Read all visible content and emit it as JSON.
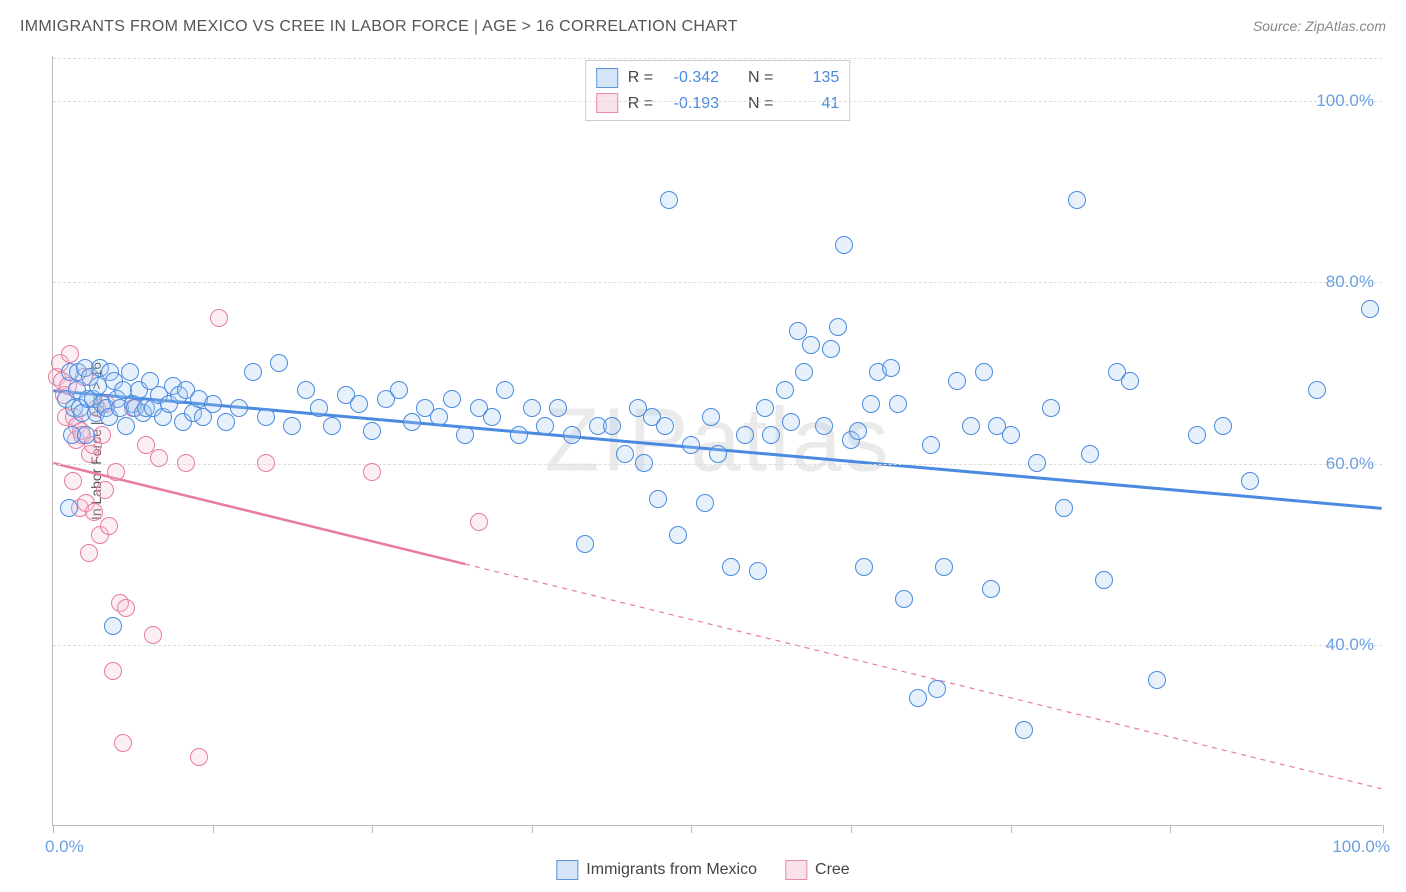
{
  "title": "IMMIGRANTS FROM MEXICO VS CREE IN LABOR FORCE | AGE > 16 CORRELATION CHART",
  "source_label": "Source:",
  "source_name": "ZipAtlas.com",
  "watermark": "ZIPatlas",
  "y_axis_title": "In Labor Force | Age > 16",
  "chart": {
    "type": "scatter",
    "xlim": [
      0,
      100
    ],
    "ylim": [
      20,
      105
    ],
    "x_tick_positions": [
      0,
      12,
      24,
      36,
      48,
      60,
      72,
      84,
      100
    ],
    "xmin_label": "0.0%",
    "xmax_label": "100.0%",
    "y_ticks": [
      {
        "v": 40,
        "label": "40.0%"
      },
      {
        "v": 60,
        "label": "60.0%"
      },
      {
        "v": 80,
        "label": "80.0%"
      },
      {
        "v": 100,
        "label": "100.0%"
      }
    ],
    "background_color": "#ffffff",
    "grid_color": "#dddddd",
    "axis_color": "#bbbbbb",
    "tick_label_color": "#6b9fe0",
    "marker_radius": 9,
    "marker_stroke_width": 1.5,
    "marker_fill_opacity": 0.28
  },
  "series": {
    "mexico": {
      "label": "Immigrants from Mexico",
      "R": "-0.342",
      "N": "135",
      "color_stroke": "#4a8ae0",
      "color_fill": "#a9cdf2",
      "swatch_border": "#5b94db",
      "trend": {
        "x0": 0,
        "y0": 68,
        "x1": 100,
        "y1": 55,
        "width": 3,
        "dash_from_x": null
      },
      "points": [
        [
          1,
          67
        ],
        [
          1.2,
          55
        ],
        [
          1.3,
          70
        ],
        [
          1.4,
          63
        ],
        [
          1.6,
          66
        ],
        [
          1.8,
          68
        ],
        [
          1.9,
          70
        ],
        [
          2.0,
          66
        ],
        [
          2.2,
          65.5
        ],
        [
          2.4,
          70.5
        ],
        [
          2.5,
          63
        ],
        [
          2.6,
          67
        ],
        [
          2.8,
          69.5
        ],
        [
          3,
          67
        ],
        [
          3.2,
          65.5
        ],
        [
          3.4,
          68.5
        ],
        [
          3.5,
          70.5
        ],
        [
          3.7,
          66.5
        ],
        [
          4,
          66
        ],
        [
          4.2,
          65
        ],
        [
          4.3,
          70
        ],
        [
          4.5,
          42
        ],
        [
          4.6,
          69
        ],
        [
          4.8,
          67
        ],
        [
          5,
          66
        ],
        [
          5.3,
          68
        ],
        [
          5.5,
          64
        ],
        [
          5.8,
          70
        ],
        [
          6,
          66.5
        ],
        [
          6.2,
          66
        ],
        [
          6.5,
          68
        ],
        [
          6.8,
          65.5
        ],
        [
          7,
          66
        ],
        [
          7.3,
          69
        ],
        [
          7.5,
          66
        ],
        [
          8,
          67.5
        ],
        [
          8.3,
          65
        ],
        [
          8.7,
          66.5
        ],
        [
          9,
          68.5
        ],
        [
          9.5,
          67.5
        ],
        [
          9.8,
          64.5
        ],
        [
          10,
          68
        ],
        [
          10.5,
          65.5
        ],
        [
          11,
          67
        ],
        [
          11.3,
          65
        ],
        [
          12,
          66.5
        ],
        [
          13,
          64.5
        ],
        [
          14,
          66
        ],
        [
          15,
          70
        ],
        [
          16,
          65
        ],
        [
          17,
          71
        ],
        [
          18,
          64
        ],
        [
          19,
          68
        ],
        [
          20,
          66
        ],
        [
          21,
          64
        ],
        [
          22,
          67.5
        ],
        [
          23,
          66.5
        ],
        [
          24,
          63.5
        ],
        [
          25,
          67
        ],
        [
          26,
          68
        ],
        [
          27,
          64.5
        ],
        [
          28,
          66
        ],
        [
          29,
          65
        ],
        [
          30,
          67
        ],
        [
          31,
          63
        ],
        [
          32,
          66
        ],
        [
          33,
          65
        ],
        [
          34,
          68
        ],
        [
          35,
          63
        ],
        [
          36,
          66
        ],
        [
          37,
          64
        ],
        [
          38,
          66
        ],
        [
          39,
          63
        ],
        [
          40,
          51
        ],
        [
          41,
          64
        ],
        [
          42,
          64
        ],
        [
          43,
          61
        ],
        [
          44,
          66
        ],
        [
          44.4,
          60
        ],
        [
          45,
          65
        ],
        [
          45.5,
          56
        ],
        [
          46,
          64
        ],
        [
          46.3,
          89
        ],
        [
          47,
          52
        ],
        [
          48,
          62
        ],
        [
          49,
          55.5
        ],
        [
          49.5,
          65
        ],
        [
          50,
          61
        ],
        [
          51,
          48.5
        ],
        [
          52,
          63
        ],
        [
          53,
          48
        ],
        [
          53.5,
          66
        ],
        [
          54,
          63
        ],
        [
          55,
          68
        ],
        [
          55.5,
          64.5
        ],
        [
          56,
          74.5
        ],
        [
          56.5,
          70
        ],
        [
          57,
          73
        ],
        [
          58,
          64
        ],
        [
          58.5,
          72.5
        ],
        [
          59,
          75
        ],
        [
          59.5,
          84
        ],
        [
          60,
          62.5
        ],
        [
          60.5,
          63.5
        ],
        [
          61,
          48.5
        ],
        [
          61.5,
          66.5
        ],
        [
          62,
          70
        ],
        [
          63,
          70.5
        ],
        [
          63.5,
          66.5
        ],
        [
          64,
          45
        ],
        [
          65,
          34
        ],
        [
          66,
          62
        ],
        [
          66.5,
          35
        ],
        [
          67,
          48.5
        ],
        [
          68,
          69
        ],
        [
          69,
          64
        ],
        [
          70,
          70
        ],
        [
          70.5,
          46
        ],
        [
          71,
          64
        ],
        [
          72,
          63
        ],
        [
          73,
          30.5
        ],
        [
          74,
          60
        ],
        [
          75,
          66
        ],
        [
          76,
          55
        ],
        [
          77,
          89
        ],
        [
          78,
          61
        ],
        [
          79,
          47
        ],
        [
          80,
          70
        ],
        [
          81,
          69
        ],
        [
          83,
          36
        ],
        [
          86,
          63
        ],
        [
          88,
          64
        ],
        [
          90,
          58
        ],
        [
          95,
          68
        ],
        [
          99,
          77
        ]
      ]
    },
    "cree": {
      "label": "Cree",
      "R": "-0.193",
      "N": "41",
      "color_stroke": "#e87ba1",
      "color_fill": "#f6c6d6",
      "swatch_border": "#e78ba8",
      "trend": {
        "x0": 0,
        "y0": 60,
        "x1": 100,
        "y1": 24,
        "width": 2.5,
        "dash_from_x": 31
      },
      "points": [
        [
          0.3,
          69.5
        ],
        [
          0.5,
          71
        ],
        [
          0.7,
          69
        ],
        [
          0.8,
          67.5
        ],
        [
          1,
          65
        ],
        [
          1.1,
          68.5
        ],
        [
          1.3,
          72
        ],
        [
          1.5,
          58
        ],
        [
          1.6,
          65
        ],
        [
          1.7,
          62.5
        ],
        [
          1.8,
          64
        ],
        [
          2,
          55
        ],
        [
          2.1,
          63.5
        ],
        [
          2.2,
          63
        ],
        [
          2.3,
          69.5
        ],
        [
          2.5,
          55.5
        ],
        [
          2.7,
          50
        ],
        [
          2.8,
          61
        ],
        [
          3,
          62
        ],
        [
          3.1,
          54.5
        ],
        [
          3.3,
          66
        ],
        [
          3.5,
          52
        ],
        [
          3.7,
          63
        ],
        [
          3.9,
          57
        ],
        [
          4,
          66.5
        ],
        [
          4.2,
          53
        ],
        [
          4.5,
          37
        ],
        [
          4.7,
          59
        ],
        [
          5,
          44.5
        ],
        [
          5.3,
          29
        ],
        [
          5.5,
          44
        ],
        [
          6,
          66
        ],
        [
          7,
          62
        ],
        [
          7.5,
          41
        ],
        [
          8,
          60.5
        ],
        [
          10,
          60
        ],
        [
          11,
          27.5
        ],
        [
          12.5,
          76
        ],
        [
          16,
          60
        ],
        [
          24,
          59
        ],
        [
          32,
          53.5
        ]
      ]
    }
  },
  "stats_legend": {
    "R_label": "R =",
    "N_label": "N ="
  }
}
